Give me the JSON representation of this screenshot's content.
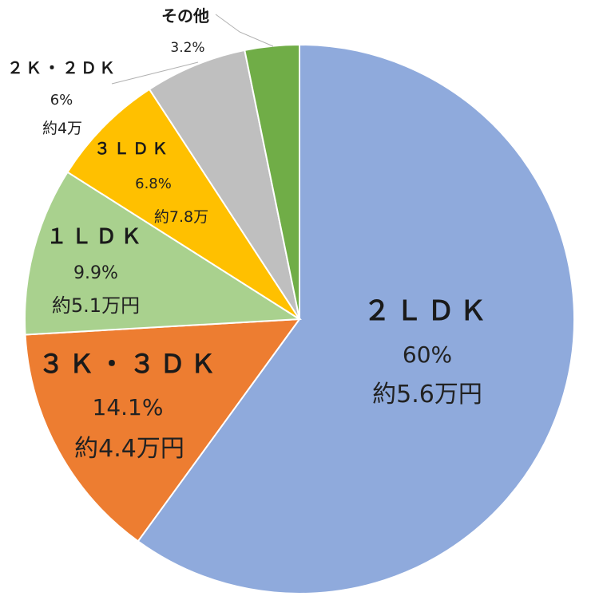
{
  "chart_data": {
    "type": "pie",
    "title": "",
    "start_angle_deg": 0,
    "direction": "clockwise",
    "slices": [
      {
        "label": "２ＬＤＫ",
        "value": 60,
        "value_text": "60%",
        "note": "約5.6万円",
        "color": "#8FAADC"
      },
      {
        "label": "３Ｋ・３ＤＫ",
        "value": 14.1,
        "value_text": "14.1%",
        "note": "約4.4万円",
        "color": "#ED7D31"
      },
      {
        "label": "１ＬＤＫ",
        "value": 9.9,
        "value_text": "9.9%",
        "note": "約5.1万円",
        "color": "#A9D18E"
      },
      {
        "label": "３ＬＤＫ",
        "value": 6.8,
        "value_text": "6.8%",
        "note": "約7.8万",
        "color": "#FFC000"
      },
      {
        "label": "２Ｋ・２ＤＫ",
        "value": 6,
        "value_text": "6%",
        "note": "約4万",
        "color": "#BFBFBF"
      },
      {
        "label": "その他",
        "value": 3.2,
        "value_text": "3.2%",
        "note": "",
        "color": "#70AD47"
      }
    ]
  }
}
